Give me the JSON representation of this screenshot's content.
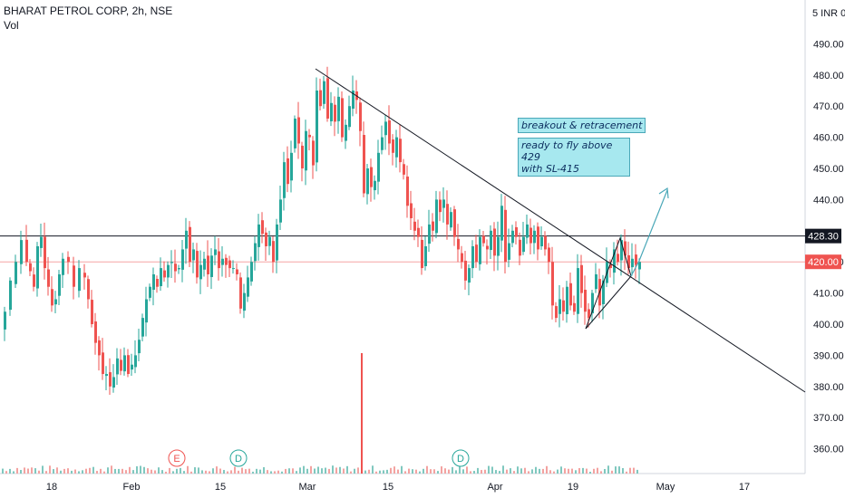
{
  "header": {
    "title": "BHARAT PETROL CORP, 2h, NSE",
    "volume_label": "Vol"
  },
  "price_scale": {
    "unit_label": "5 INR 0"
  },
  "annotations": {
    "note1": "breakout & retracement",
    "note2_line1": "ready to fly above 429",
    "note2_line2": "with SL-415"
  },
  "colors": {
    "up": "#26a69a",
    "down": "#ef5350",
    "line": "#131722",
    "accent": "#4aa8b8"
  },
  "chart_data": {
    "type": "candlestick",
    "x_ticks": [
      "18",
      "Feb",
      "15",
      "Mar",
      "15",
      "Apr",
      "19",
      "May",
      "17"
    ],
    "y_ticks": [
      360,
      370,
      380,
      390,
      400,
      410,
      420,
      440,
      450,
      460,
      470,
      480,
      490
    ],
    "ylim": [
      353,
      495
    ],
    "price_labels": [
      {
        "value": 428.3,
        "label": "428.30",
        "style": "dark"
      },
      {
        "value": 420.0,
        "label": "420.00",
        "style": "red"
      }
    ],
    "horizontal_lines": [
      428.3,
      420.0
    ],
    "trendline": {
      "from": [
        "Mar 3",
        482
      ],
      "to": [
        "May 25",
        378
      ]
    },
    "events": [
      {
        "label": "E",
        "type": "earnings",
        "date": "Feb 9"
      },
      {
        "label": "D",
        "type": "dividend",
        "date": "Feb 19"
      },
      {
        "label": "D",
        "type": "dividend",
        "date": "Mar 25"
      }
    ],
    "price_path": [
      [
        0,
        398
      ],
      [
        4,
        404
      ],
      [
        10,
        414
      ],
      [
        16,
        420
      ],
      [
        22,
        427
      ],
      [
        28,
        420
      ],
      [
        32,
        417
      ],
      [
        36,
        412
      ],
      [
        40,
        425
      ],
      [
        44,
        428
      ],
      [
        48,
        418
      ],
      [
        52,
        412
      ],
      [
        56,
        406
      ],
      [
        60,
        408
      ],
      [
        64,
        416
      ],
      [
        68,
        421
      ],
      [
        74,
        420
      ],
      [
        80,
        412
      ],
      [
        86,
        418
      ],
      [
        92,
        415
      ],
      [
        96,
        408
      ],
      [
        100,
        400
      ],
      [
        104,
        394
      ],
      [
        108,
        390
      ],
      [
        112,
        384
      ],
      [
        116,
        384
      ],
      [
        120,
        380
      ],
      [
        124,
        383
      ],
      [
        128,
        389
      ],
      [
        132,
        385
      ],
      [
        136,
        390
      ],
      [
        140,
        384
      ],
      [
        144,
        387
      ],
      [
        148,
        390
      ],
      [
        152,
        395
      ],
      [
        156,
        402
      ],
      [
        160,
        408
      ],
      [
        164,
        412
      ],
      [
        168,
        416
      ],
      [
        172,
        412
      ],
      [
        176,
        418
      ],
      [
        180,
        415
      ],
      [
        184,
        419
      ],
      [
        188,
        420
      ],
      [
        192,
        417
      ],
      [
        196,
        418
      ],
      [
        200,
        424
      ],
      [
        204,
        430
      ],
      [
        208,
        420
      ],
      [
        212,
        424
      ],
      [
        216,
        415
      ],
      [
        220,
        419
      ],
      [
        224,
        421
      ],
      [
        228,
        416
      ],
      [
        232,
        422
      ],
      [
        236,
        424
      ],
      [
        240,
        418
      ],
      [
        244,
        421
      ],
      [
        248,
        419
      ],
      [
        252,
        418
      ],
      [
        256,
        418
      ],
      [
        260,
        416
      ],
      [
        264,
        405
      ],
      [
        268,
        410
      ],
      [
        272,
        415
      ],
      [
        276,
        420
      ],
      [
        280,
        426
      ],
      [
        284,
        432
      ],
      [
        288,
        429
      ],
      [
        292,
        425
      ],
      [
        296,
        428
      ],
      [
        300,
        420
      ],
      [
        304,
        432
      ],
      [
        308,
        440
      ],
      [
        312,
        452
      ],
      [
        316,
        445
      ],
      [
        320,
        455
      ],
      [
        324,
        466
      ],
      [
        328,
        458
      ],
      [
        332,
        450
      ],
      [
        336,
        462
      ],
      [
        340,
        460
      ],
      [
        344,
        451
      ],
      [
        348,
        475
      ],
      [
        352,
        470
      ],
      [
        356,
        478
      ],
      [
        360,
        466
      ],
      [
        364,
        471
      ],
      [
        368,
        465
      ],
      [
        372,
        473
      ],
      [
        376,
        460
      ],
      [
        380,
        464
      ],
      [
        384,
        470
      ],
      [
        388,
        475
      ],
      [
        392,
        472
      ],
      [
        396,
        462
      ],
      [
        400,
        442
      ],
      [
        404,
        450
      ],
      [
        408,
        444
      ],
      [
        412,
        446
      ],
      [
        416,
        455
      ],
      [
        420,
        460
      ],
      [
        424,
        465
      ],
      [
        428,
        458
      ],
      [
        432,
        455
      ],
      [
        436,
        460
      ],
      [
        440,
        452
      ],
      [
        444,
        448
      ],
      [
        448,
        438
      ],
      [
        452,
        434
      ],
      [
        456,
        430
      ],
      [
        460,
        428
      ],
      [
        464,
        418
      ],
      [
        468,
        425
      ],
      [
        472,
        432
      ],
      [
        476,
        430
      ],
      [
        480,
        440
      ],
      [
        484,
        436
      ],
      [
        488,
        440
      ],
      [
        492,
        432
      ],
      [
        496,
        436
      ],
      [
        500,
        428
      ],
      [
        504,
        424
      ],
      [
        508,
        420
      ],
      [
        512,
        414
      ],
      [
        516,
        418
      ],
      [
        520,
        425
      ],
      [
        524,
        420
      ],
      [
        528,
        428
      ],
      [
        532,
        426
      ],
      [
        536,
        424
      ],
      [
        540,
        430
      ],
      [
        544,
        422
      ],
      [
        548,
        428
      ],
      [
        552,
        438
      ],
      [
        556,
        420
      ],
      [
        560,
        426
      ],
      [
        564,
        430
      ],
      [
        568,
        428
      ],
      [
        572,
        422
      ],
      [
        576,
        428
      ],
      [
        580,
        432
      ],
      [
        584,
        426
      ],
      [
        588,
        430
      ],
      [
        592,
        424
      ],
      [
        596,
        428
      ],
      [
        600,
        424
      ],
      [
        604,
        420
      ],
      [
        608,
        406
      ],
      [
        612,
        402
      ],
      [
        616,
        408
      ],
      [
        620,
        404
      ],
      [
        624,
        412
      ],
      [
        628,
        406
      ],
      [
        632,
        404
      ],
      [
        636,
        418
      ],
      [
        640,
        410
      ],
      [
        644,
        404
      ],
      [
        648,
        402
      ],
      [
        652,
        410
      ],
      [
        656,
        416
      ],
      [
        660,
        406
      ],
      [
        664,
        414
      ],
      [
        668,
        420
      ],
      [
        672,
        418
      ],
      [
        676,
        424
      ],
      [
        680,
        420
      ],
      [
        684,
        427
      ],
      [
        688,
        422
      ],
      [
        692,
        418
      ],
      [
        696,
        421
      ],
      [
        700,
        419
      ],
      [
        704,
        420
      ]
    ],
    "volume_spike": {
      "x_date": "Mar 10",
      "note": "single large volume bar"
    }
  }
}
